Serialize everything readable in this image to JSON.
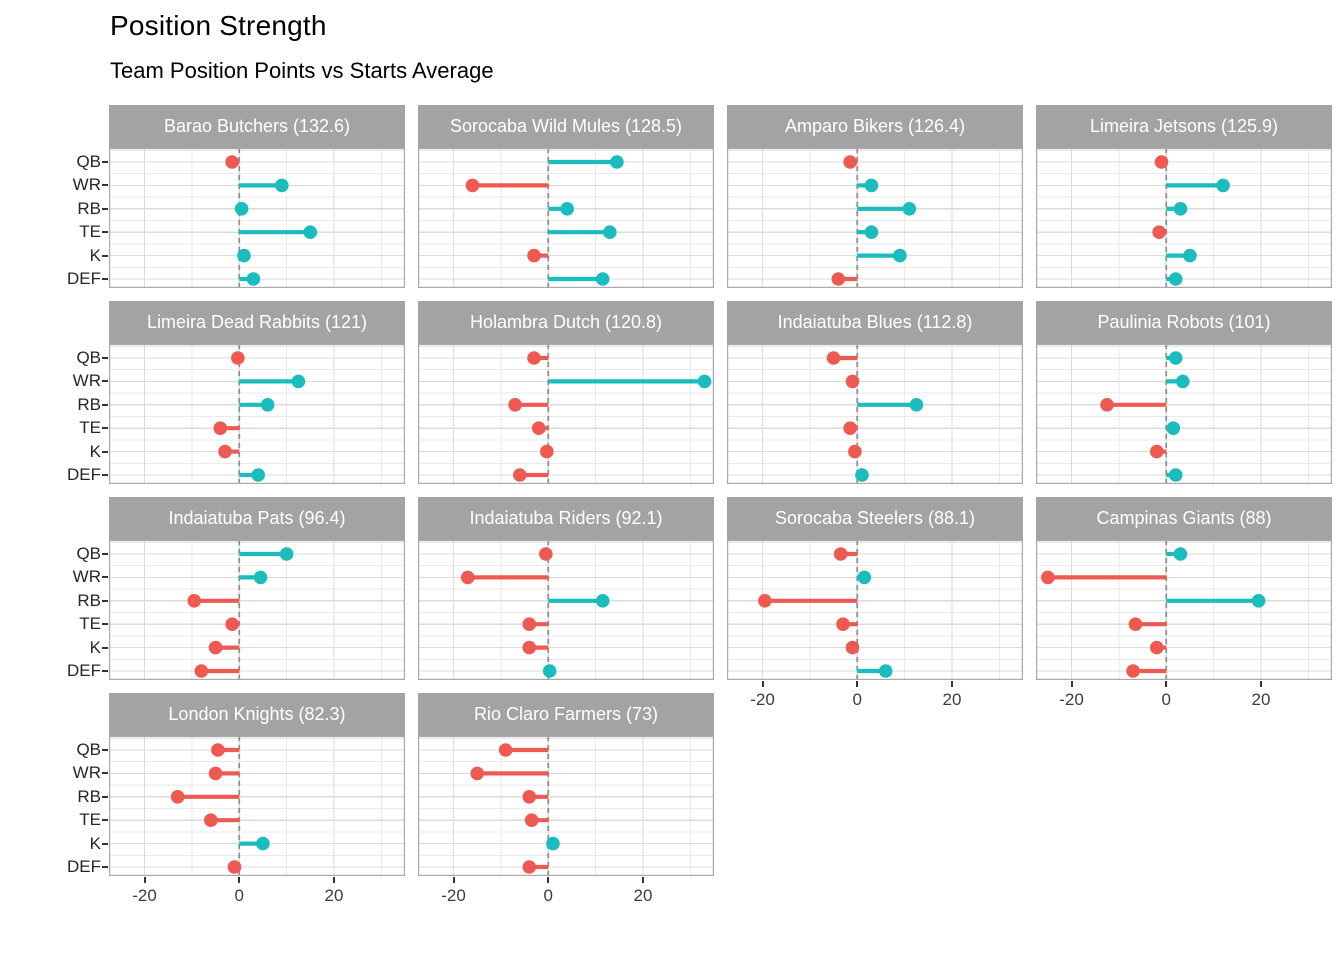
{
  "title": "Position Strength",
  "subtitle": "Team Position Points vs Starts Average",
  "chart_data": {
    "type": "bar",
    "variant": "faceted-horizontal-lollipop",
    "facet_columns": 4,
    "categories": [
      "QB",
      "WR",
      "RB",
      "TE",
      "K",
      "DEF"
    ],
    "xlabel": "",
    "ylabel": "",
    "xlim": [
      -27.5,
      35
    ],
    "grid": true,
    "legend_position": "none",
    "x_axis": {
      "ticks": [
        {
          "value": -20,
          "label": "-20"
        },
        {
          "value": 0,
          "label": "0"
        },
        {
          "value": 20,
          "label": "20"
        }
      ],
      "minor_ticks": [
        -10,
        10,
        30
      ]
    },
    "colors": {
      "positive": "#1BBCBE",
      "negative": "#EE5A52",
      "strip_bg": "#A3A3A3",
      "strip_text": "#FFFFFF",
      "grid_major": "#DBDBDB",
      "grid_minor": "#EAEAEA",
      "panel_border": "#A9A9A9",
      "zero_line": "#8F8F8F",
      "axis_text": "#3D3D3D"
    },
    "facets": [
      {
        "team": "Barao Butchers",
        "total": "132.6",
        "label": "Barao Butchers (132.6)",
        "values": [
          -1.5,
          9,
          0.5,
          15,
          1,
          3
        ]
      },
      {
        "team": "Sorocaba Wild Mules",
        "total": "128.5",
        "label": "Sorocaba Wild Mules (128.5)",
        "values": [
          14.5,
          -16,
          4,
          13,
          -3,
          11.5
        ]
      },
      {
        "team": "Amparo Bikers",
        "total": "126.4",
        "label": "Amparo Bikers (126.4)",
        "values": [
          -1.5,
          3,
          11,
          3,
          9,
          -4
        ]
      },
      {
        "team": "Limeira Jetsons",
        "total": "125.9",
        "label": "Limeira Jetsons (125.9)",
        "values": [
          -1,
          12,
          3,
          -1.5,
          5,
          2
        ]
      },
      {
        "team": "Limeira Dead Rabbits",
        "total": "121",
        "label": "Limeira Dead Rabbits (121)",
        "values": [
          -0.3,
          12.5,
          6,
          -4,
          -3,
          4
        ]
      },
      {
        "team": "Holambra Dutch",
        "total": "120.8",
        "label": "Holambra Dutch (120.8)",
        "values": [
          -3,
          33,
          -7,
          -2,
          -0.3,
          -6
        ]
      },
      {
        "team": "Indaiatuba Blues",
        "total": "112.8",
        "label": "Indaiatuba Blues (112.8)",
        "values": [
          -5,
          -1,
          12.5,
          -1.5,
          -0.5,
          1
        ]
      },
      {
        "team": "Paulinia Robots",
        "total": "101",
        "label": "Paulinia Robots (101)",
        "values": [
          2,
          3.5,
          -12.5,
          1.5,
          -2,
          2
        ]
      },
      {
        "team": "Indaiatuba Pats",
        "total": "96.4",
        "label": "Indaiatuba Pats (96.4)",
        "values": [
          10,
          4.5,
          -9.5,
          -1.5,
          -5,
          -8
        ]
      },
      {
        "team": "Indaiatuba Riders",
        "total": "92.1",
        "label": "Indaiatuba Riders (92.1)",
        "values": [
          -0.5,
          -17,
          11.5,
          -4,
          -4,
          0.3
        ]
      },
      {
        "team": "Sorocaba Steelers",
        "total": "88.1",
        "label": "Sorocaba Steelers (88.1)",
        "values": [
          -3.5,
          1.5,
          -19.5,
          -3,
          -1,
          6
        ]
      },
      {
        "team": "Campinas Giants",
        "total": "88",
        "label": "Campinas Giants (88)",
        "values": [
          3,
          -25,
          19.5,
          -6.5,
          -2,
          -7
        ]
      },
      {
        "team": "London Knights",
        "total": "82.3",
        "label": "London Knights (82.3)",
        "values": [
          -4.5,
          -5,
          -13,
          -6,
          5,
          -1
        ]
      },
      {
        "team": "Rio Claro Farmers",
        "total": "73",
        "label": "Rio Claro Farmers (73)",
        "values": [
          -9,
          -15,
          -4,
          -3.5,
          1,
          -4
        ]
      }
    ]
  }
}
